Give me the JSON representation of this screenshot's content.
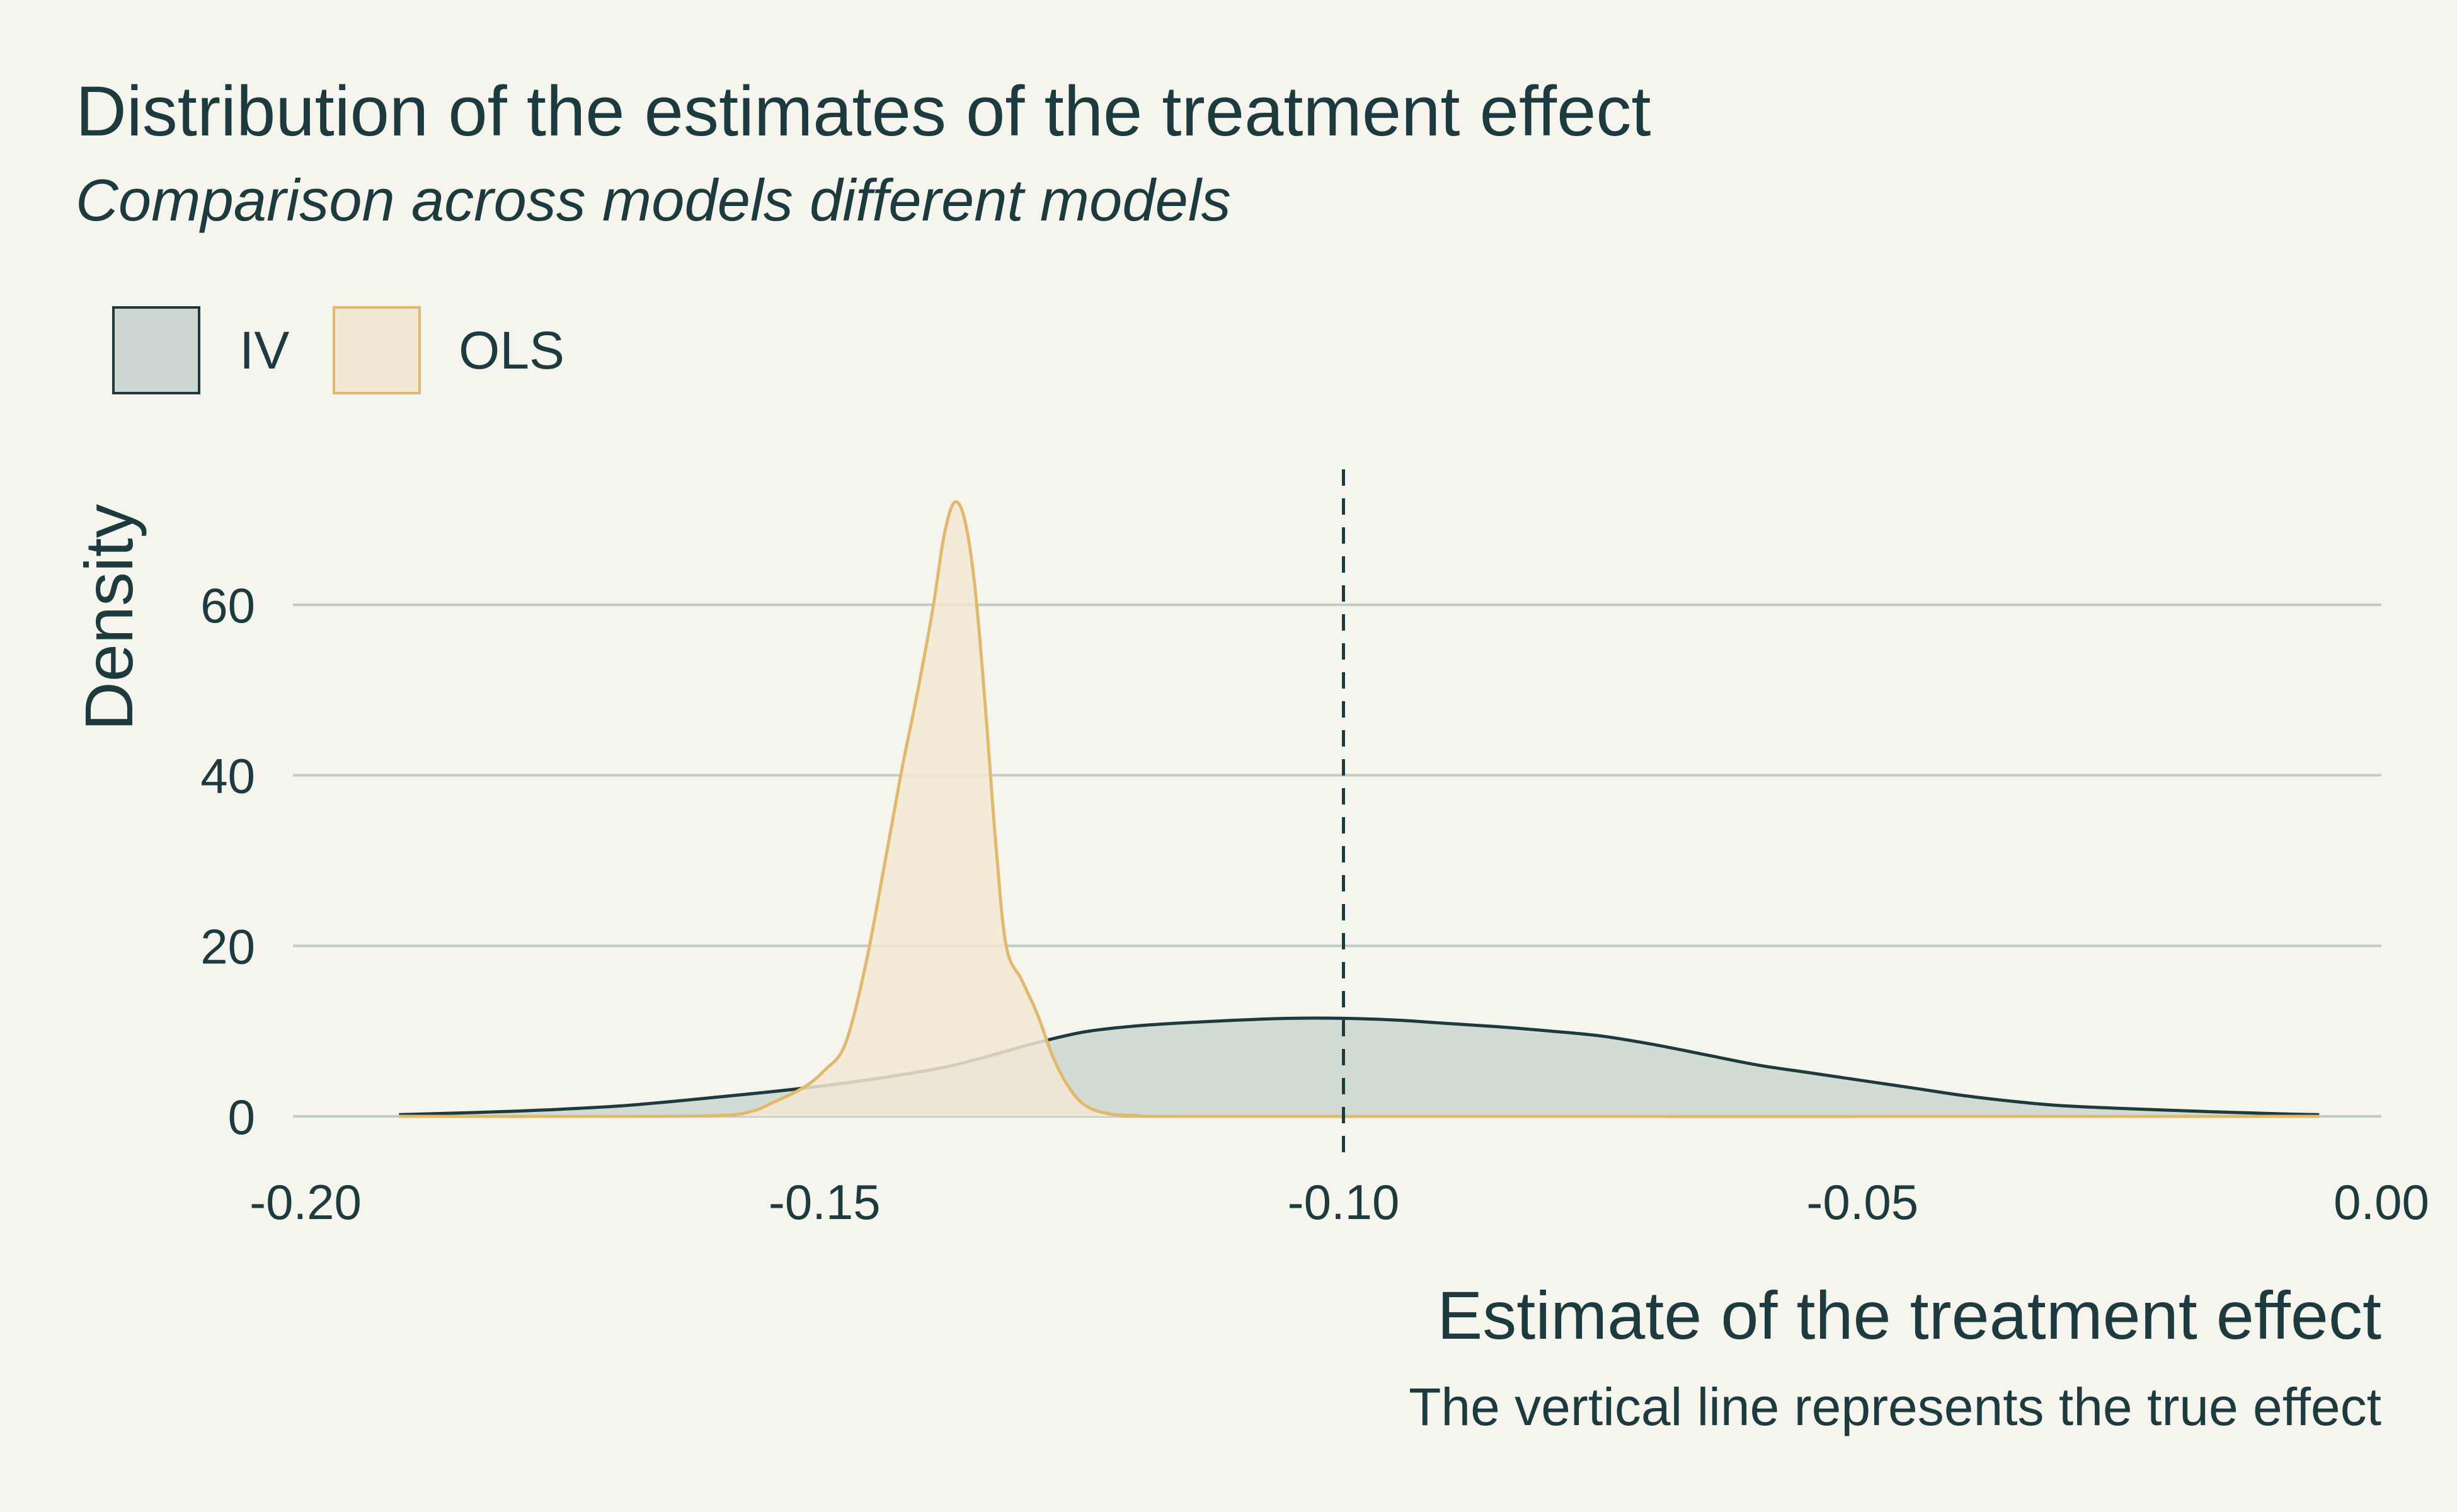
{
  "chart_data": {
    "type": "area",
    "title": "Distribution of the estimates of the treatment effect",
    "subtitle": "Comparison across models different models",
    "xlabel": "Estimate of the treatment effect",
    "ylabel": "Density",
    "caption": "The vertical line represents the true effect",
    "xlim": [
      -0.2,
      0.0
    ],
    "ylim": [
      0,
      72
    ],
    "x_ticks": [
      -0.2,
      -0.15,
      -0.1,
      -0.05,
      0.0
    ],
    "x_tick_labels": [
      "-0.20",
      "-0.15",
      "-0.10",
      "-0.05",
      "0.00"
    ],
    "y_ticks": [
      0,
      20,
      40,
      60
    ],
    "y_tick_labels": [
      "0",
      "20",
      "40",
      "60"
    ],
    "grid": "horizontal",
    "legend": "top-left",
    "reference_line": {
      "x": -0.1,
      "style": "dashed"
    },
    "series": [
      {
        "name": "IV",
        "fill": "#cbd7d0",
        "stroke": "#1d3a3f",
        "points": [
          [
            -0.191,
            0.2
          ],
          [
            -0.18,
            0.6
          ],
          [
            -0.17,
            1.2
          ],
          [
            -0.16,
            2.3
          ],
          [
            -0.15,
            3.6
          ],
          [
            -0.14,
            5.4
          ],
          [
            -0.135,
            6.8
          ],
          [
            -0.13,
            8.5
          ],
          [
            -0.125,
            9.9
          ],
          [
            -0.12,
            10.6
          ],
          [
            -0.115,
            11.0
          ],
          [
            -0.11,
            11.3
          ],
          [
            -0.105,
            11.5
          ],
          [
            -0.1,
            11.5
          ],
          [
            -0.095,
            11.3
          ],
          [
            -0.09,
            10.9
          ],
          [
            -0.085,
            10.5
          ],
          [
            -0.08,
            10.0
          ],
          [
            -0.075,
            9.4
          ],
          [
            -0.07,
            8.4
          ],
          [
            -0.065,
            7.2
          ],
          [
            -0.06,
            6.0
          ],
          [
            -0.055,
            5.1
          ],
          [
            -0.05,
            4.2
          ],
          [
            -0.045,
            3.3
          ],
          [
            -0.04,
            2.4
          ],
          [
            -0.035,
            1.7
          ],
          [
            -0.03,
            1.2
          ],
          [
            -0.02,
            0.7
          ],
          [
            -0.01,
            0.3
          ],
          [
            -0.006,
            0.2
          ]
        ]
      },
      {
        "name": "OLS",
        "fill": "#f2e8d4",
        "stroke": "#e1b96e",
        "points": [
          [
            -0.191,
            0.0
          ],
          [
            -0.17,
            0.0
          ],
          [
            -0.16,
            0.1
          ],
          [
            -0.157,
            0.6
          ],
          [
            -0.155,
            1.6
          ],
          [
            -0.152,
            3.4
          ],
          [
            -0.15,
            5.4
          ],
          [
            -0.148,
            8.5
          ],
          [
            -0.146,
            18.0
          ],
          [
            -0.144,
            31.0
          ],
          [
            -0.1425,
            41.0
          ],
          [
            -0.141,
            50.0
          ],
          [
            -0.1395,
            60.0
          ],
          [
            -0.1385,
            68.0
          ],
          [
            -0.1375,
            72.0
          ],
          [
            -0.1365,
            70.0
          ],
          [
            -0.1355,
            62.0
          ],
          [
            -0.1345,
            48.0
          ],
          [
            -0.1335,
            32.0
          ],
          [
            -0.1325,
            20.0
          ],
          [
            -0.131,
            16.0
          ],
          [
            -0.1295,
            12.0
          ],
          [
            -0.128,
            7.0
          ],
          [
            -0.1265,
            3.5
          ],
          [
            -0.125,
            1.4
          ],
          [
            -0.123,
            0.4
          ],
          [
            -0.12,
            0.1
          ],
          [
            -0.11,
            0.0
          ],
          [
            -0.006,
            0.0
          ]
        ]
      }
    ]
  }
}
